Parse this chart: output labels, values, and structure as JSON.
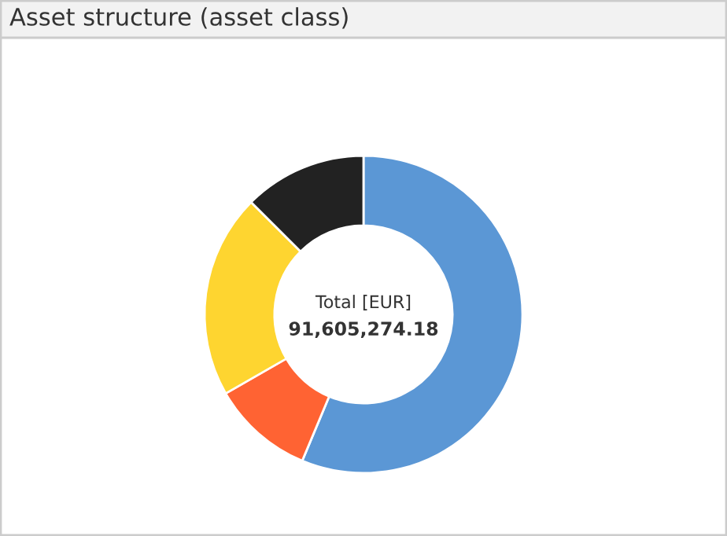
{
  "chart_data": {
    "type": "donut",
    "title": "Asset structure (asset class)",
    "categories": [
      null,
      null,
      null,
      null
    ],
    "values": [
      56.3,
      10.4,
      20.8,
      12.5
    ],
    "colors": [
      "#5b97d5",
      "#ff6333",
      "#fed530",
      "#222222"
    ],
    "annotations": [
      "Total [EUR]",
      "91,605,274.18"
    ],
    "legend": false
  }
}
